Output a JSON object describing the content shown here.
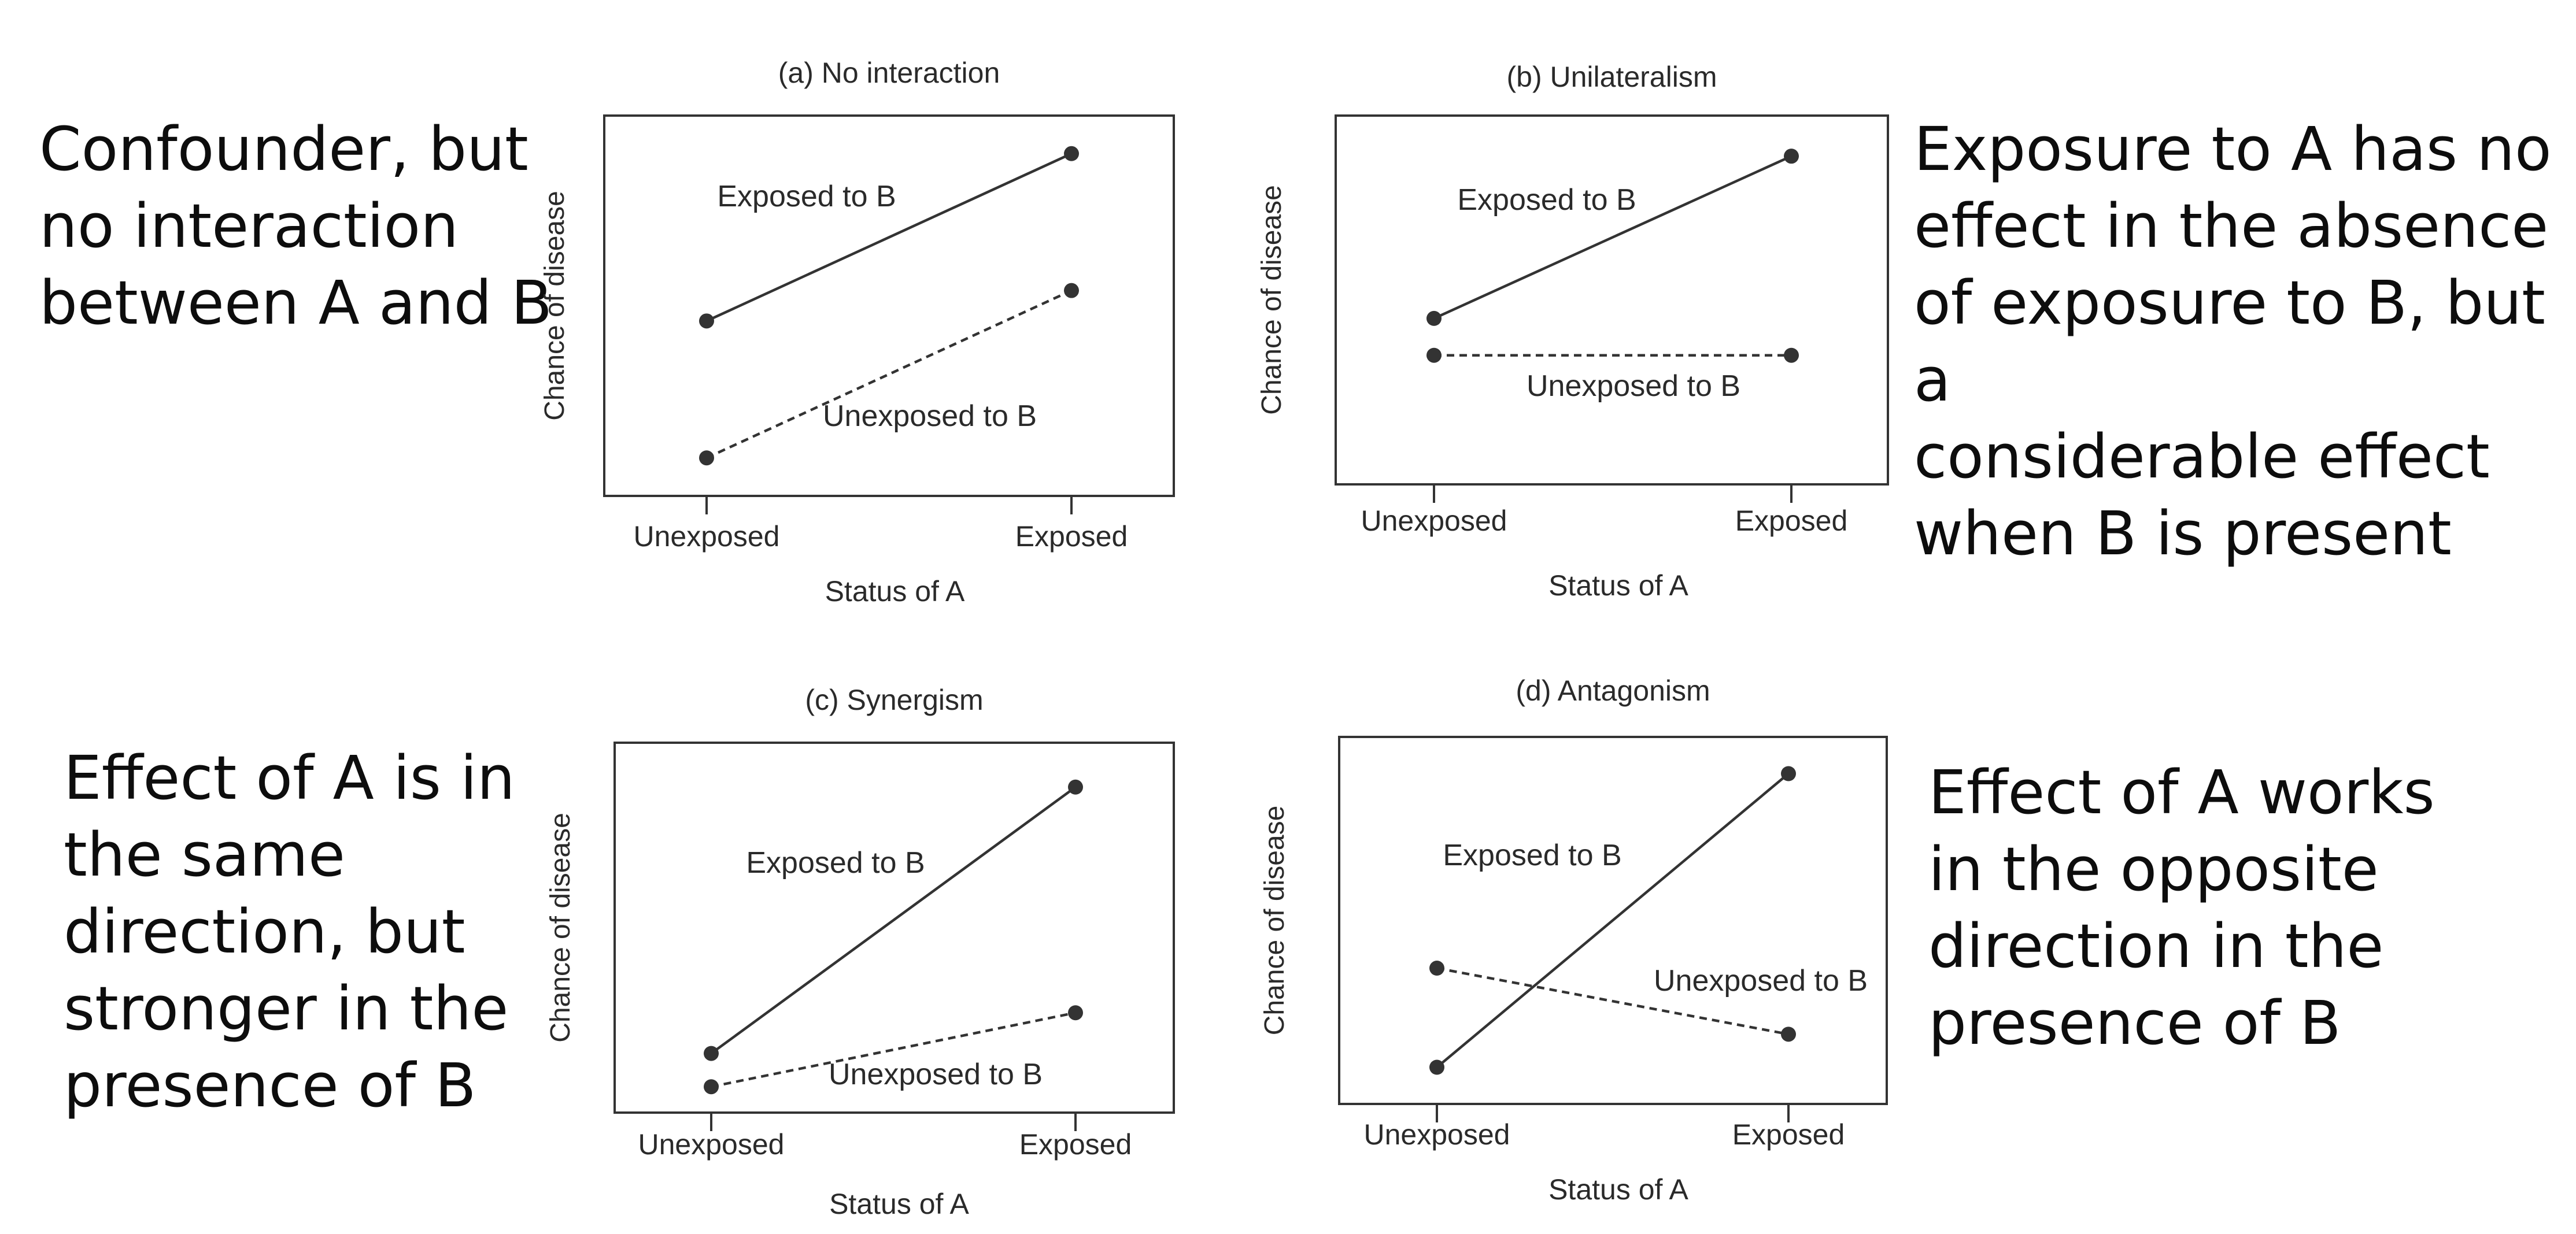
{
  "notes": {
    "a": "Confounder, but\nno interaction\nbetween A and B",
    "b": "Exposure to A has no\neffect in the absence\nof exposure to B, but a\nconsiderable effect\nwhen B is present",
    "c": "Effect of A is in\nthe same\ndirection, but\nstronger in the\npresence of B",
    "d": "Effect of A works\nin the opposite\ndirection in the\npresence of B"
  },
  "chart_data": [
    {
      "type": "line",
      "title": "(a) No interaction",
      "xlabel": "Status of A",
      "ylabel": "Chance of disease",
      "categories": [
        "Unexposed",
        "Exposed"
      ],
      "ylim": [
        0,
        1
      ],
      "yticks": false,
      "grid": false,
      "series": [
        {
          "name": "Exposed to B",
          "values": [
            0.46,
            0.9
          ],
          "style": "solid",
          "color": "#333333"
        },
        {
          "name": "Unexposed to B",
          "values": [
            0.1,
            0.54
          ],
          "style": "dashed",
          "color": "#333333"
        }
      ]
    },
    {
      "type": "line",
      "title": "(b) Unilateralism",
      "xlabel": "Status of A",
      "ylabel": "Chance of disease",
      "categories": [
        "Unexposed",
        "Exposed"
      ],
      "ylim": [
        0,
        1
      ],
      "yticks": false,
      "grid": false,
      "series": [
        {
          "name": "Exposed to B",
          "values": [
            0.45,
            0.89
          ],
          "style": "solid",
          "color": "#333333"
        },
        {
          "name": "Unexposed to B",
          "values": [
            0.35,
            0.35
          ],
          "style": "dashed",
          "color": "#333333"
        }
      ]
    },
    {
      "type": "line",
      "title": "(c) Synergism",
      "xlabel": "Status of A",
      "ylabel": "Chance of disease",
      "categories": [
        "Unexposed",
        "Exposed"
      ],
      "ylim": [
        0,
        1
      ],
      "yticks": false,
      "grid": false,
      "series": [
        {
          "name": "Exposed to B",
          "values": [
            0.16,
            0.88
          ],
          "style": "solid",
          "color": "#333333"
        },
        {
          "name": "Unexposed to B",
          "values": [
            0.07,
            0.27
          ],
          "style": "dashed",
          "color": "#333333"
        }
      ]
    },
    {
      "type": "line",
      "title": "(d) Antagonism",
      "xlabel": "Status of A",
      "ylabel": "Chance of disease",
      "categories": [
        "Unexposed",
        "Exposed"
      ],
      "ylim": [
        0,
        1
      ],
      "yticks": false,
      "grid": false,
      "series": [
        {
          "name": "Exposed to B",
          "values": [
            0.1,
            0.9
          ],
          "style": "solid",
          "color": "#333333"
        },
        {
          "name": "Unexposed to B",
          "values": [
            0.37,
            0.19
          ],
          "style": "dashed",
          "color": "#333333"
        }
      ]
    }
  ]
}
